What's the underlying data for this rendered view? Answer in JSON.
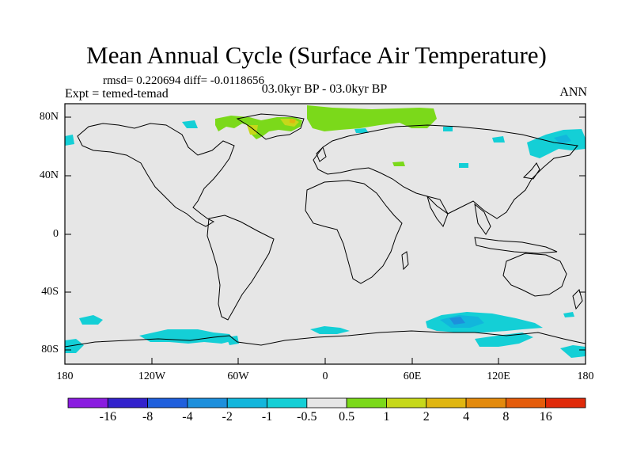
{
  "title": "Mean Annual Cycle (Surface Air Temperature)",
  "stats": "rmsd= 0.220694 diff= -0.0118656",
  "experiment": "Expt = temed-temad",
  "period": "03.0kyr BP - 03.0kyr BP",
  "season": "ANN",
  "lat_ticks": [
    "80N",
    "40N",
    "0",
    "40S",
    "80S"
  ],
  "lon_ticks": [
    "180",
    "120W",
    "60W",
    "0",
    "60E",
    "120E",
    "180"
  ],
  "colorbar": {
    "labels": [
      "-16",
      "-8",
      "-4",
      "-2",
      "-1",
      "-0.5",
      "0.5",
      "1",
      "2",
      "4",
      "8",
      "16"
    ],
    "colors": [
      "#8a1ce0",
      "#3322cc",
      "#1f5fdc",
      "#1d8fdc",
      "#12b6dc",
      "#14cfd6",
      "#e6e6e6",
      "#7bd91a",
      "#c6d81a",
      "#e0b611",
      "#e38a0d",
      "#e45c0b",
      "#e02a0a"
    ]
  },
  "palette": {
    "background": "#e6e6e6",
    "cyan": "#14cfd6",
    "light_blue": "#12b6dc",
    "blue": "#1d8fdc",
    "green": "#7bd91a",
    "yellow_green": "#c6d81a",
    "orange": "#e0b611"
  }
}
